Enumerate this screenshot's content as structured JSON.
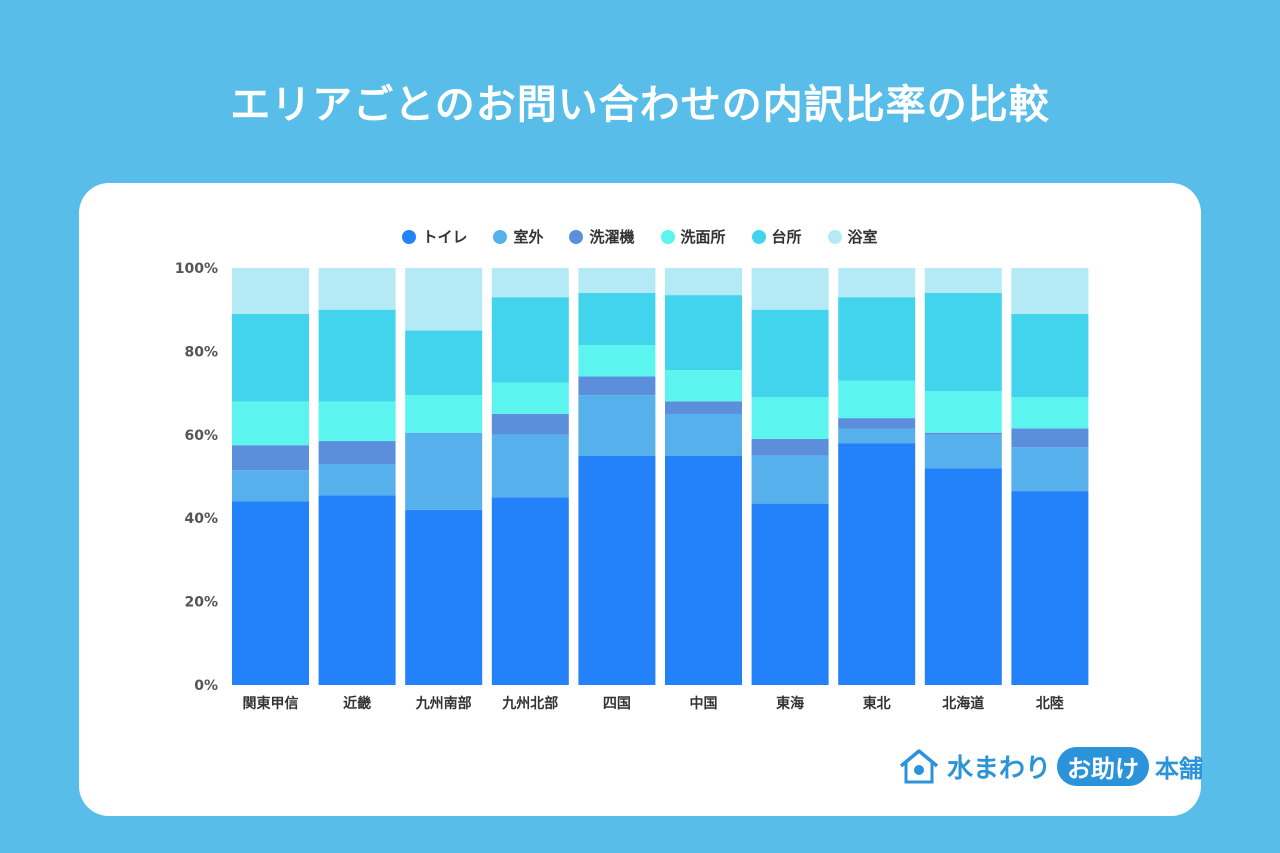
{
  "title": "エリアごとのお問い合わせの内訳比率の比較",
  "colors": {
    "トイレ": "#2382fa",
    "室外": "#56b0ec",
    "洗濯機": "#5b8fdc",
    "洗面所": "#5cf4ee",
    "台所": "#42d4ec",
    "浴室": "#b3eaf6"
  },
  "logo": {
    "icon": "house-icon",
    "part1": "水まわり",
    "part2": "お助け",
    "part3": "本舗"
  },
  "chart_data": {
    "type": "bar",
    "stacked": true,
    "categories": [
      "関東甲信",
      "近畿",
      "九州南部",
      "九州北部",
      "四国",
      "中国",
      "東海",
      "東北",
      "北海道",
      "北陸"
    ],
    "ylim": [
      0,
      100
    ],
    "yticks": [
      "0%",
      "20%",
      "40%",
      "60%",
      "80%",
      "100%"
    ],
    "grid": false,
    "legend_position": "top",
    "series": [
      {
        "name": "トイレ",
        "values": [
          44,
          45.5,
          42,
          45,
          55,
          55,
          43.5,
          58,
          52,
          46.5
        ]
      },
      {
        "name": "室外",
        "values": [
          7.5,
          7.5,
          18.5,
          15,
          14.5,
          10,
          11.5,
          3.5,
          8,
          10.5
        ]
      },
      {
        "name": "洗濯機",
        "values": [
          6,
          5.5,
          0,
          5,
          4.5,
          3,
          4,
          2.5,
          0.5,
          4.5
        ]
      },
      {
        "name": "洗面所",
        "values": [
          10.5,
          9.5,
          9,
          7.5,
          7.5,
          7.5,
          10,
          9,
          10,
          7.5
        ]
      },
      {
        "name": "台所",
        "values": [
          21,
          22,
          15.5,
          20.5,
          12.5,
          18,
          21,
          20,
          23.5,
          20
        ]
      },
      {
        "name": "浴室",
        "values": [
          11,
          10,
          15,
          7,
          6,
          6.5,
          10,
          7,
          6,
          11
        ]
      }
    ]
  }
}
